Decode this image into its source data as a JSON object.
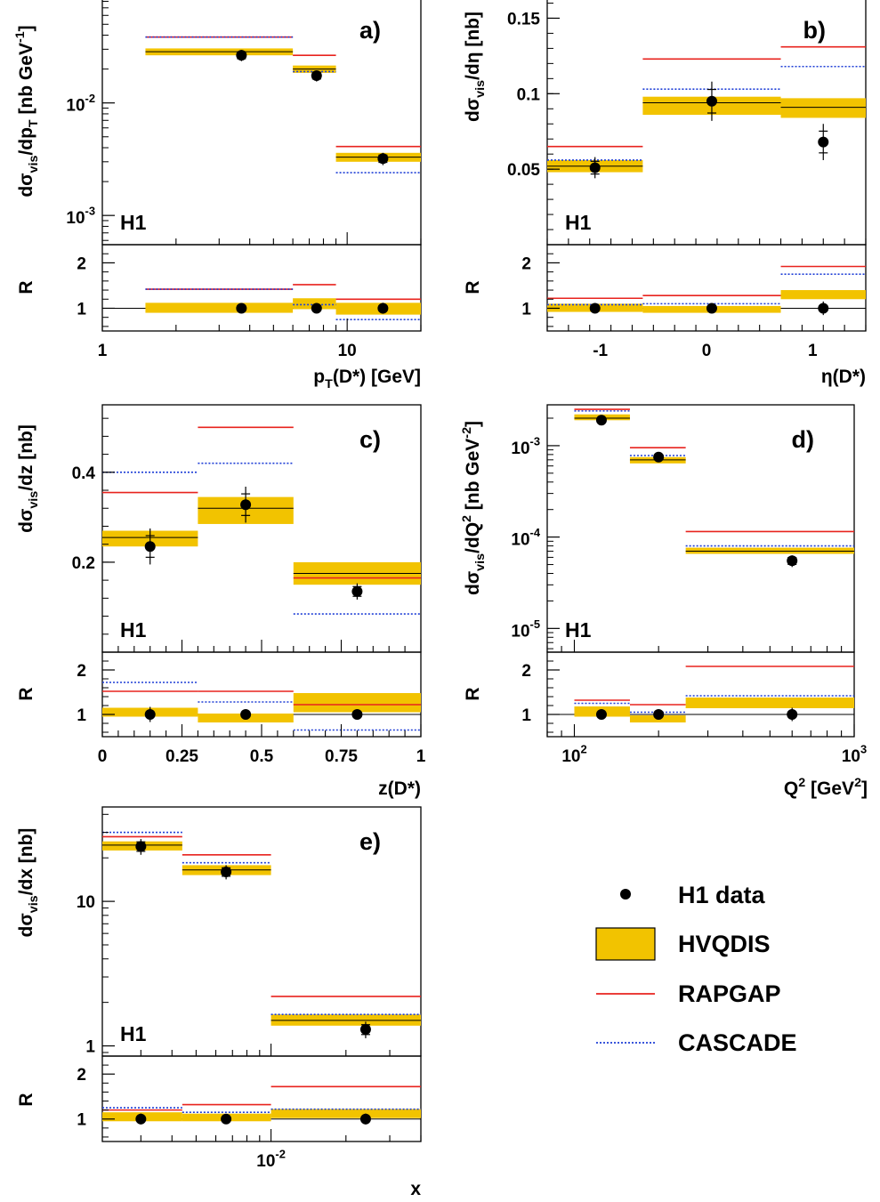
{
  "legend": {
    "items": [
      {
        "key": "data",
        "label": "H1 data"
      },
      {
        "key": "hvqdis",
        "label": "HVQDIS"
      },
      {
        "key": "rapgap",
        "label": "RAPGAP"
      },
      {
        "key": "cascade",
        "label": "CASCADE"
      }
    ]
  },
  "colors": {
    "data": "#000000",
    "band": "#f2c300",
    "rapgap": "#e8231e",
    "cascade": "#1f3fd6"
  },
  "chart_data": [
    {
      "panel": "a)",
      "type": "bar",
      "label_h1": "H1",
      "xscale": "log",
      "xlim": [
        1,
        20
      ],
      "xticks": [
        1,
        10
      ],
      "xticklabels": [
        "1",
        "10"
      ],
      "xlabel": "p_T(D*) [GeV]",
      "yscale": "log",
      "ylim": [
        0.00055,
        0.09
      ],
      "yticks": [
        0.01,
        0.001
      ],
      "yticklabels": [
        [
          "10",
          "-2"
        ],
        [
          "10",
          "-3"
        ]
      ],
      "ylabel": "dσ_vis/dp_T [nb GeV^-1]",
      "rlim": [
        0.5,
        2.4
      ],
      "rticks": [
        1,
        2
      ],
      "bins": [
        [
          1.5,
          6
        ],
        [
          6,
          9
        ],
        [
          9,
          20
        ]
      ],
      "data": [
        {
          "x": 3.7,
          "y": 0.0265,
          "err": 0.003,
          "r": 1.0,
          "rerr": 0.1
        },
        {
          "x": 7.5,
          "y": 0.0175,
          "err": 0.002,
          "r": 1.0,
          "rerr": 0.08
        },
        {
          "x": 14.0,
          "y": 0.0032,
          "err": 0.0004,
          "r": 1.0,
          "rerr": 0.12
        }
      ],
      "hvqdis": [
        [
          0.0265,
          0.0305,
          0.0285
        ],
        [
          0.0185,
          0.0215,
          0.02
        ],
        [
          0.003,
          0.0036,
          0.0033
        ]
      ],
      "hvqdis_r": [
        [
          0.9,
          1.12,
          1.0
        ],
        [
          0.98,
          1.22,
          1.1
        ],
        [
          0.86,
          1.12,
          1.0
        ]
      ],
      "rapgap": [
        0.0385,
        0.0265,
        0.0041
      ],
      "cascade": [
        0.0385,
        0.019,
        0.0024
      ],
      "rapgap_r": [
        1.42,
        1.52,
        1.2
      ],
      "cascade_r": [
        1.42,
        1.08,
        0.75
      ]
    },
    {
      "panel": "b)",
      "type": "bar",
      "label_h1": "H1",
      "xscale": "lin",
      "xlim": [
        -1.5,
        1.5
      ],
      "xticks": [
        -1,
        0,
        1
      ],
      "xticklabels": [
        "-1",
        "0",
        "1"
      ],
      "xlabel": "η(D*)",
      "yscale": "lin",
      "ylim": [
        0.0,
        0.165
      ],
      "yticks": [
        0.05,
        0.1,
        0.15
      ],
      "yticklabels": [
        "0.05",
        "0.1",
        "0.15"
      ],
      "ylabel": "dσ_vis/dη [nb]",
      "rlim": [
        0.5,
        2.4
      ],
      "rticks": [
        1,
        2
      ],
      "bins": [
        [
          -1.5,
          -0.6
        ],
        [
          -0.6,
          0.7
        ],
        [
          0.7,
          1.5
        ]
      ],
      "data": [
        {
          "x": -1.05,
          "y": 0.051,
          "err": 0.007,
          "r": 1.0,
          "rerr": 0.1
        },
        {
          "x": 0.05,
          "y": 0.095,
          "err": 0.013,
          "r": 1.0,
          "rerr": 0.05
        },
        {
          "x": 1.1,
          "y": 0.068,
          "err": 0.012,
          "r": 1.0,
          "rerr": 0.15
        }
      ],
      "hvqdis": [
        [
          0.048,
          0.056,
          0.052
        ],
        [
          0.086,
          0.098,
          0.094
        ],
        [
          0.084,
          0.097,
          0.091
        ]
      ],
      "hvqdis_r": [
        [
          0.92,
          1.1,
          1.0
        ],
        [
          0.9,
          1.05,
          0.98
        ],
        [
          1.2,
          1.4,
          1.3
        ]
      ],
      "rapgap": [
        0.065,
        0.123,
        0.131
      ],
      "cascade": [
        0.056,
        0.103,
        0.118
      ],
      "rapgap_r": [
        1.22,
        1.28,
        1.92
      ],
      "cascade_r": [
        1.08,
        1.1,
        1.75
      ]
    },
    {
      "panel": "c)",
      "type": "bar",
      "label_h1": "H1",
      "xscale": "lin",
      "xlim": [
        0,
        1
      ],
      "xticks": [
        0,
        0.25,
        0.5,
        0.75,
        1
      ],
      "xticklabels": [
        "0",
        "0.25",
        "0.5",
        "0.75",
        "1"
      ],
      "xlabel": "z(D*)",
      "yscale": "lin",
      "ylim": [
        0.0,
        0.55
      ],
      "yticks": [
        0.2,
        0.4
      ],
      "yticklabels": [
        "0.2",
        "0.4"
      ],
      "ylabel": "dσ_vis/dz [nb]",
      "rlim": [
        0.5,
        2.4
      ],
      "rticks": [
        1,
        2
      ],
      "bins": [
        [
          0,
          0.3
        ],
        [
          0.3,
          0.6
        ],
        [
          0.6,
          1.0
        ]
      ],
      "data": [
        {
          "x": 0.15,
          "y": 0.235,
          "err": 0.04,
          "r": 1.0,
          "rerr": 0.17
        },
        {
          "x": 0.45,
          "y": 0.328,
          "err": 0.04,
          "r": 1.0,
          "rerr": 0.08
        },
        {
          "x": 0.8,
          "y": 0.135,
          "err": 0.018,
          "r": 1.0,
          "rerr": 0.07
        }
      ],
      "hvqdis": [
        [
          0.235,
          0.27,
          0.255
        ],
        [
          0.285,
          0.345,
          0.32
        ],
        [
          0.15,
          0.2,
          0.175
        ]
      ],
      "hvqdis_r": [
        [
          0.95,
          1.15,
          1.05
        ],
        [
          0.82,
          1.02,
          0.92
        ],
        [
          1.05,
          1.48,
          1.25
        ]
      ],
      "rapgap": [
        0.355,
        0.5,
        0.165
      ],
      "cascade": [
        0.4,
        0.42,
        0.085
      ],
      "rapgap_r": [
        1.52,
        1.52,
        1.22
      ],
      "cascade_r": [
        1.72,
        1.28,
        0.65
      ]
    },
    {
      "panel": "d)",
      "type": "bar",
      "label_h1": "H1",
      "xscale": "log",
      "xlim": [
        80,
        1000
      ],
      "xticks": [
        100,
        1000
      ],
      "xticklabels": [
        [
          "10",
          "2"
        ],
        [
          "10",
          "3"
        ]
      ],
      "xlabel": "Q^2 [GeV^2]",
      "yscale": "log",
      "ylim": [
        5.5e-06,
        0.0028
      ],
      "yticks": [
        0.001,
        0.0001,
        1e-05
      ],
      "yticklabels": [
        [
          "10",
          "-3"
        ],
        [
          "10",
          "-4"
        ],
        [
          "10",
          "-5"
        ]
      ],
      "ylabel": "dσ_vis/dQ^2 [nb GeV^-2]",
      "rlim": [
        0.5,
        2.4
      ],
      "rticks": [
        1,
        2
      ],
      "bins": [
        [
          100,
          158
        ],
        [
          158,
          250
        ],
        [
          250,
          1000
        ]
      ],
      "data": [
        {
          "x": 125,
          "y": 0.0019,
          "err": 0.00015,
          "r": 1.0,
          "rerr": 0.08
        },
        {
          "x": 200,
          "y": 0.00075,
          "err": 6e-05,
          "r": 1.0,
          "rerr": 0.08
        },
        {
          "x": 600,
          "y": 5.5e-05,
          "err": 8e-06,
          "r": 1.0,
          "rerr": 0.15
        }
      ],
      "hvqdis": [
        [
          0.0019,
          0.0022,
          0.002
        ],
        [
          0.00064,
          0.00075,
          0.0007
        ],
        [
          6.55e-05,
          7.65e-05,
          7e-05
        ]
      ],
      "hvqdis_r": [
        [
          0.95,
          1.18,
          1.08
        ],
        [
          0.82,
          0.98,
          0.9
        ],
        [
          1.14,
          1.38,
          1.25
        ]
      ],
      "rapgap": [
        0.0025,
        0.00095,
        0.000115
      ],
      "cascade": [
        0.0024,
        0.00078,
        8e-05
      ],
      "rapgap_r": [
        1.32,
        1.22,
        2.08
      ],
      "cascade_r": [
        1.25,
        1.05,
        1.42
      ]
    },
    {
      "panel": "e)",
      "type": "bar",
      "label_h1": "H1",
      "xscale": "log",
      "xlim": [
        0.0021,
        0.04
      ],
      "xticks": [
        0.01
      ],
      "xticklabels": [
        [
          "10",
          "-2"
        ]
      ],
      "xlabel": "x",
      "yscale": "log",
      "ylim": [
        0.85,
        45
      ],
      "yticks": [
        1,
        10
      ],
      "yticklabels": [
        "1",
        "10"
      ],
      "ylabel": "dσ_vis/dx [nb]",
      "rlim": [
        0.5,
        2.4
      ],
      "rticks": [
        1,
        2
      ],
      "bins": [
        [
          0.0021,
          0.0044
        ],
        [
          0.0044,
          0.01
        ],
        [
          0.01,
          0.04
        ]
      ],
      "data": [
        {
          "x": 0.003,
          "y": 24,
          "err": 3,
          "r": 1.0,
          "rerr": 0.12
        },
        {
          "x": 0.0066,
          "y": 16,
          "err": 1.8,
          "r": 1.0,
          "rerr": 0.08
        },
        {
          "x": 0.024,
          "y": 1.3,
          "err": 0.17,
          "r": 1.0,
          "rerr": 0.12
        }
      ],
      "hvqdis": [
        [
          22.5,
          26,
          24.5
        ],
        [
          15.2,
          17.8,
          16.5
        ],
        [
          1.38,
          1.65,
          1.5
        ]
      ],
      "hvqdis_r": [
        [
          0.95,
          1.15,
          1.05
        ],
        [
          0.95,
          1.12,
          1.05
        ],
        [
          1.02,
          1.22,
          1.12
        ]
      ],
      "rapgap": [
        28,
        21,
        2.2
      ],
      "cascade": [
        30,
        18.5,
        1.65
      ],
      "rapgap_r": [
        1.2,
        1.32,
        1.72
      ],
      "cascade_r": [
        1.25,
        1.15,
        1.22
      ]
    }
  ]
}
